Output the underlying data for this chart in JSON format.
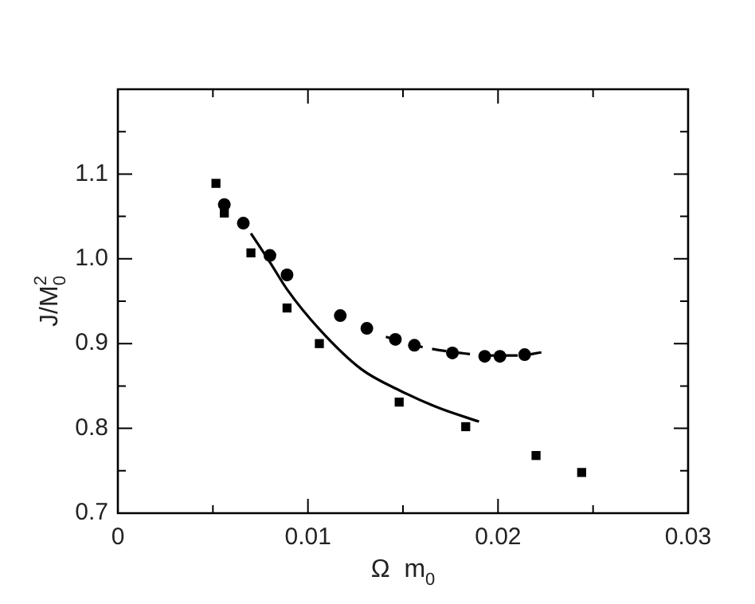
{
  "chart_data": {
    "type": "scatter",
    "xlabel": "Ω  m$_{0}$",
    "ylabel": "J/M$_{0}$$^{2}$",
    "xlim": [
      0,
      0.03
    ],
    "ylim": [
      0.7,
      1.2
    ],
    "xticks": [
      0,
      {
        "value": 0.005,
        "label": null
      },
      0.01,
      {
        "value": 0.015,
        "label": null
      },
      0.02,
      {
        "value": 0.025,
        "label": null
      },
      0.03
    ],
    "yticks": [
      0.7,
      {
        "value": 0.75,
        "label": null
      },
      0.8,
      {
        "value": 0.85,
        "label": null
      },
      0.9,
      {
        "value": 0.95,
        "label": null
      },
      {
        "value": 1.0,
        "label": "1.0"
      },
      {
        "value": 1.05,
        "label": null
      },
      1.1,
      {
        "value": 1.15,
        "label": null
      },
      {
        "value": 1.2,
        "label": null
      }
    ],
    "grid": false,
    "legend": false,
    "series": [
      {
        "type": "scatter",
        "marker": "square",
        "color": "#000000",
        "x": [
          0.00516,
          0.0056,
          0.007,
          0.0089,
          0.0106,
          0.0148,
          0.0183,
          0.022,
          0.0244
        ],
        "values": [
          1.089,
          1.054,
          1.007,
          0.942,
          0.9,
          0.831,
          0.802,
          0.768,
          0.748
        ]
      },
      {
        "type": "scatter",
        "marker": "circle",
        "color": "#000000",
        "x": [
          0.0056,
          0.0066,
          0.008,
          0.0089,
          0.0117,
          0.0131,
          0.0146,
          0.0156,
          0.0176,
          0.0193,
          0.0201,
          0.0214
        ],
        "values": [
          1.064,
          1.042,
          1.004,
          0.981,
          0.933,
          0.918,
          0.905,
          0.898,
          0.889,
          0.885,
          0.885,
          0.887
        ]
      },
      {
        "type": "line",
        "marker": "none",
        "line_style": "solid",
        "color": "#000000",
        "x": [
          0.007,
          0.008,
          0.0089,
          0.0106,
          0.0128,
          0.0148,
          0.0169,
          0.019
        ],
        "values": [
          1.03,
          0.996,
          0.964,
          0.917,
          0.87,
          0.845,
          0.824,
          0.808
        ]
      },
      {
        "type": "line",
        "marker": "none",
        "line_style": "dashed",
        "color": "#000000",
        "x": [
          0.0141,
          0.016,
          0.018,
          0.0195,
          0.021,
          0.0224
        ],
        "values": [
          0.908,
          0.896,
          0.889,
          0.886,
          0.886,
          0.89
        ]
      }
    ]
  }
}
